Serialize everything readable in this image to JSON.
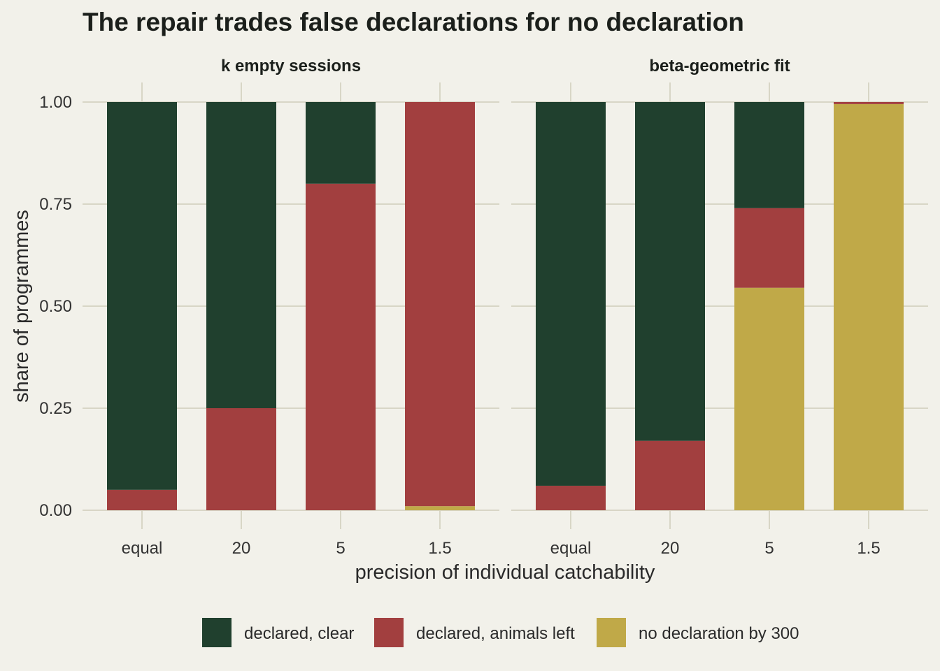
{
  "chart_data": {
    "type": "bar",
    "stacked": true,
    "title": "The repair trades false declarations for no declaration",
    "xlabel": "precision of individual catchability",
    "ylabel": "share of programmes",
    "ylim": [
      0,
      1
    ],
    "yticks": [
      "0.00",
      "0.25",
      "0.50",
      "0.75",
      "1.00"
    ],
    "ytick_values": [
      0,
      0.25,
      0.5,
      0.75,
      1
    ],
    "categories": [
      "equal",
      "20",
      "5",
      "1.5"
    ],
    "grid": true,
    "legend_position": "bottom",
    "series": [
      {
        "key": "clear",
        "name": "declared, clear",
        "color": "#20402e"
      },
      {
        "key": "left",
        "name": "declared, animals left",
        "color": "#a23f3f"
      },
      {
        "key": "none",
        "name": "no declaration by 300",
        "color": "#c0a948"
      }
    ],
    "panels": [
      {
        "name": "k empty sessions",
        "values": {
          "clear": [
            0.95,
            0.75,
            0.2,
            0.0
          ],
          "left": [
            0.05,
            0.25,
            0.8,
            0.99
          ],
          "none": [
            0.0,
            0.0,
            0.0,
            0.01
          ]
        }
      },
      {
        "name": "beta-geometric fit",
        "values": {
          "clear": [
            0.94,
            0.83,
            0.26,
            0.0
          ],
          "left": [
            0.06,
            0.17,
            0.195,
            0.005
          ],
          "none": [
            0.0,
            0.0,
            0.545,
            0.995
          ]
        }
      }
    ]
  }
}
